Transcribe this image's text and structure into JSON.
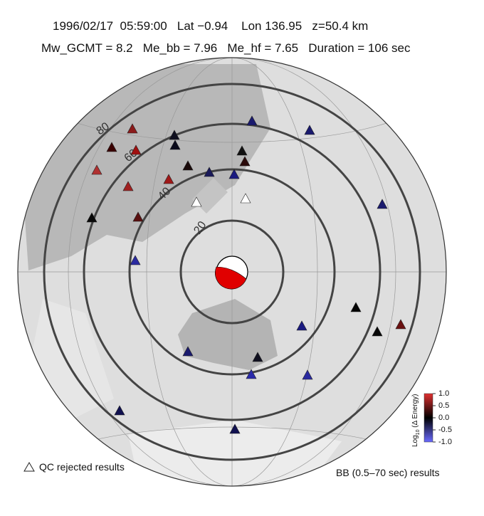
{
  "header": {
    "line1": "1996/02/17  05:59:00   Lat −0.94    Lon 136.95   z=50.4 km",
    "line2": "Mw_GCMT = 8.2   Me_bb = 7.96   Me_hf = 7.65   Duration = 106 sec"
  },
  "distance_labels": [
    "20",
    "40",
    "60",
    "80"
  ],
  "legend": {
    "qc": "QC rejected results",
    "bb": "BB (0.5–70 sec) results"
  },
  "colorbar": {
    "label_main": "Log",
    "label_sub": "10",
    "label_rest": " (Δ Energy)",
    "lim": [
      -1,
      1
    ],
    "ticks": [
      {
        "value": 1,
        "label": "1.0"
      },
      0.5,
      {
        "value": 0,
        "label": "0.0"
      },
      -0.5,
      {
        "value": -1,
        "label": "-1.0"
      }
    ]
  }
}
